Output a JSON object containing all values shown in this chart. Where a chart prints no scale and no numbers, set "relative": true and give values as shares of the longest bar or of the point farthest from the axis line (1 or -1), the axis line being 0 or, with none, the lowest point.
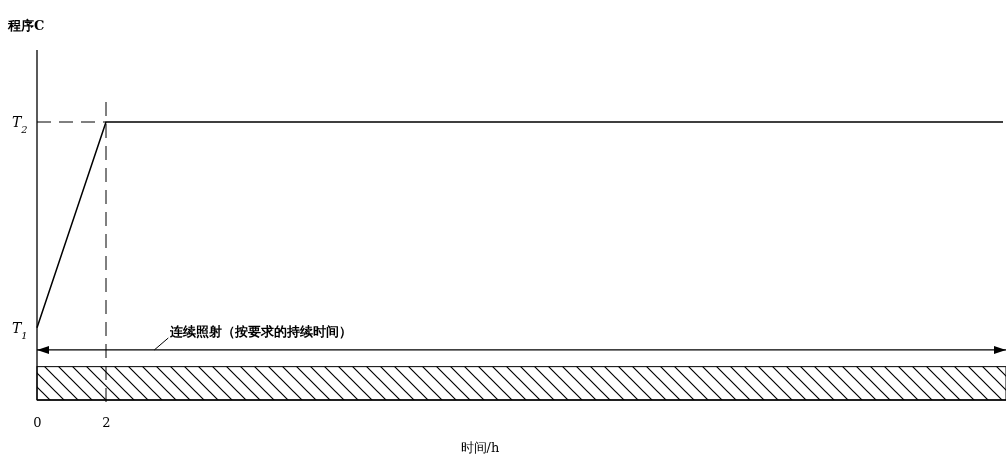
{
  "chart_data": {
    "type": "line",
    "title": "程序C",
    "xlabel": "时间/h",
    "relative": true,
    "x": [
      0,
      2,
      28
    ],
    "xlim": [
      0,
      28
    ],
    "xticks": [
      0,
      2
    ],
    "series": [
      {
        "color": "#000000",
        "values": [
          0.26,
          1,
          1
        ]
      }
    ],
    "ref_lines": [
      {
        "axis": "x",
        "value": 2,
        "line_style": "dashed"
      },
      {
        "axis": "y",
        "value": 1,
        "label": "T$_{2}$",
        "line_style": "dashed"
      },
      {
        "axis": "y",
        "value": 0.18,
        "label": "连续照射（按要求的持续时间）",
        "line_style": "solid"
      }
    ],
    "bands": [
      {
        "axis": "y",
        "from": 0,
        "to": 0.12
      }
    ],
    "annotations": [
      {
        "text": "T$_{1}$",
        "x": 0,
        "y": 0.26
      }
    ],
    "grid": false,
    "legend": false,
    "marker": "none",
    "line_style": "solid"
  }
}
